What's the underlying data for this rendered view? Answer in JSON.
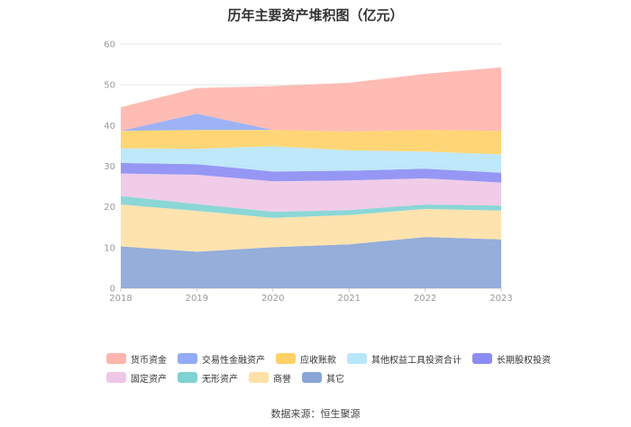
{
  "page": {
    "title": "历年主要资产堆积图（亿元）",
    "source": "数据来源：恒生聚源"
  },
  "chart_data": {
    "type": "area",
    "stacked": true,
    "title": "历年主要资产堆积图（亿元）",
    "x": [
      "2018",
      "2019",
      "2020",
      "2021",
      "2022",
      "2023"
    ],
    "ylim": [
      0,
      60
    ],
    "yticks": [
      0,
      10,
      20,
      30,
      40,
      50,
      60
    ],
    "grid": true,
    "legend_position": "bottom",
    "series": [
      {
        "name": "其它",
        "color": "#8aa5d6",
        "values": [
          10.3,
          9.0,
          10.1,
          10.8,
          12.6,
          12.0
        ]
      },
      {
        "name": "商誉",
        "color": "#ffe0a6",
        "values": [
          10.3,
          10.0,
          7.2,
          7.2,
          6.9,
          7.1
        ]
      },
      {
        "name": "无形资产",
        "color": "#7ed3d3",
        "values": [
          2.1,
          1.7,
          1.5,
          1.2,
          1.1,
          1.2
        ]
      },
      {
        "name": "固定资产",
        "color": "#eec7e6",
        "values": [
          5.5,
          7.2,
          7.5,
          7.3,
          6.4,
          5.7
        ]
      },
      {
        "name": "长期股权投资",
        "color": "#8b8cf4",
        "values": [
          2.6,
          2.6,
          2.4,
          2.4,
          2.4,
          2.4
        ]
      },
      {
        "name": "其他权益工具投资合计",
        "color": "#b8e6fb",
        "values": [
          3.6,
          3.8,
          6.2,
          5.0,
          4.2,
          4.5
        ]
      },
      {
        "name": "应收账款",
        "color": "#ffd166",
        "values": [
          4.3,
          4.6,
          4.0,
          4.6,
          5.3,
          5.8
        ]
      },
      {
        "name": "交易性金融资产",
        "color": "#93aaf5",
        "values": [
          0.0,
          4.0,
          0.0,
          0.0,
          0.0,
          0.0
        ]
      },
      {
        "name": "货币资金",
        "color": "#feb5ad",
        "values": [
          5.8,
          6.3,
          10.8,
          12.0,
          13.8,
          15.6
        ]
      }
    ]
  },
  "legend": {
    "row1": [
      {
        "label": "货币资金",
        "color": "#feb5ad"
      },
      {
        "label": "交易性金融资产",
        "color": "#93aaf5"
      },
      {
        "label": "应收账款",
        "color": "#ffd166"
      },
      {
        "label": "其他权益工具投资合计",
        "color": "#b8e6fb"
      },
      {
        "label": "长期股权投资",
        "color": "#8b8cf4"
      }
    ],
    "row2": [
      {
        "label": "固定资产",
        "color": "#eec7e6"
      },
      {
        "label": "无形资产",
        "color": "#7ed3d3"
      },
      {
        "label": "商誉",
        "color": "#ffe0a6"
      },
      {
        "label": "其它",
        "color": "#8aa5d6"
      }
    ]
  }
}
